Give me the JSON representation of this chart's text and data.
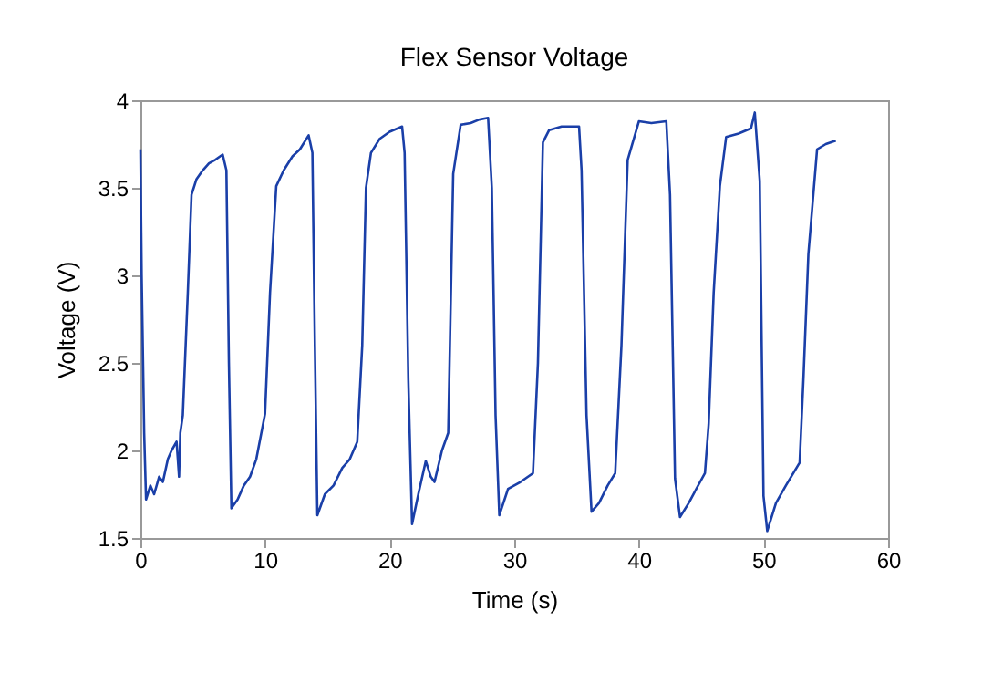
{
  "chart_data": {
    "type": "line",
    "title": "Flex Sensor Voltage",
    "xlabel": "Time (s)",
    "ylabel": "Voltage (V)",
    "xlim": [
      0,
      60
    ],
    "ylim": [
      1.5,
      4
    ],
    "xticks": [
      0,
      10,
      20,
      30,
      40,
      50,
      60
    ],
    "yticks": [
      1.5,
      2,
      2.5,
      3,
      3.5,
      4
    ],
    "grid": false,
    "marker": "none",
    "line_style": "solid",
    "series": [
      {
        "color": "#1a3fa8",
        "x": [
          0,
          0.1,
          0.3,
          0.45,
          0.8,
          1.1,
          1.5,
          1.8,
          2.2,
          2.5,
          2.9,
          3.1,
          3.2,
          3.4,
          3.8,
          4.1,
          4.5,
          5.0,
          5.5,
          6.0,
          6.6,
          6.9,
          7.1,
          7.3,
          7.8,
          8.3,
          8.8,
          9.3,
          10.0,
          10.4,
          10.9,
          11.5,
          12.2,
          12.8,
          13.5,
          13.8,
          14.0,
          14.2,
          14.8,
          15.5,
          16.2,
          16.8,
          17.4,
          17.8,
          18.1,
          18.5,
          19.2,
          20.0,
          21.0,
          21.2,
          21.5,
          21.8,
          22.3,
          22.9,
          23.3,
          23.6,
          24.2,
          24.7,
          25.1,
          25.7,
          26.5,
          27.2,
          27.9,
          28.2,
          28.5,
          28.8,
          29.5,
          30.5,
          31.5,
          31.9,
          32.3,
          32.8,
          33.8,
          35.2,
          35.4,
          35.8,
          36.2,
          36.8,
          37.5,
          38.1,
          38.6,
          39.1,
          40.0,
          41.0,
          42.2,
          42.5,
          42.9,
          43.3,
          44.0,
          44.6,
          45.3,
          45.6,
          46.0,
          46.5,
          47.0,
          48.0,
          49.0,
          49.3,
          49.7,
          50.0,
          50.3,
          51.0,
          51.8,
          52.9,
          53.2,
          53.6,
          54.3,
          55.0,
          55.8
        ],
        "values": [
          3.72,
          3.0,
          2.1,
          1.72,
          1.8,
          1.75,
          1.85,
          1.82,
          1.95,
          2.0,
          2.05,
          1.85,
          2.1,
          2.2,
          2.9,
          3.46,
          3.55,
          3.6,
          3.64,
          3.66,
          3.69,
          3.6,
          2.5,
          1.67,
          1.72,
          1.8,
          1.85,
          1.95,
          2.21,
          2.9,
          3.51,
          3.6,
          3.68,
          3.72,
          3.8,
          3.7,
          2.6,
          1.63,
          1.75,
          1.8,
          1.9,
          1.95,
          2.05,
          2.6,
          3.5,
          3.7,
          3.78,
          3.82,
          3.85,
          3.7,
          2.4,
          1.58,
          1.75,
          1.94,
          1.85,
          1.82,
          2.0,
          2.1,
          3.58,
          3.86,
          3.87,
          3.89,
          3.9,
          3.5,
          2.2,
          1.63,
          1.78,
          1.82,
          1.87,
          2.5,
          3.76,
          3.83,
          3.85,
          3.85,
          3.6,
          2.2,
          1.65,
          1.7,
          1.8,
          1.87,
          2.6,
          3.66,
          3.88,
          3.87,
          3.88,
          3.46,
          1.84,
          1.62,
          1.7,
          1.78,
          1.87,
          2.15,
          2.9,
          3.51,
          3.79,
          3.81,
          3.84,
          3.93,
          3.54,
          1.74,
          1.54,
          1.7,
          1.8,
          1.93,
          2.4,
          3.12,
          3.72,
          3.75,
          3.77
        ]
      }
    ]
  }
}
